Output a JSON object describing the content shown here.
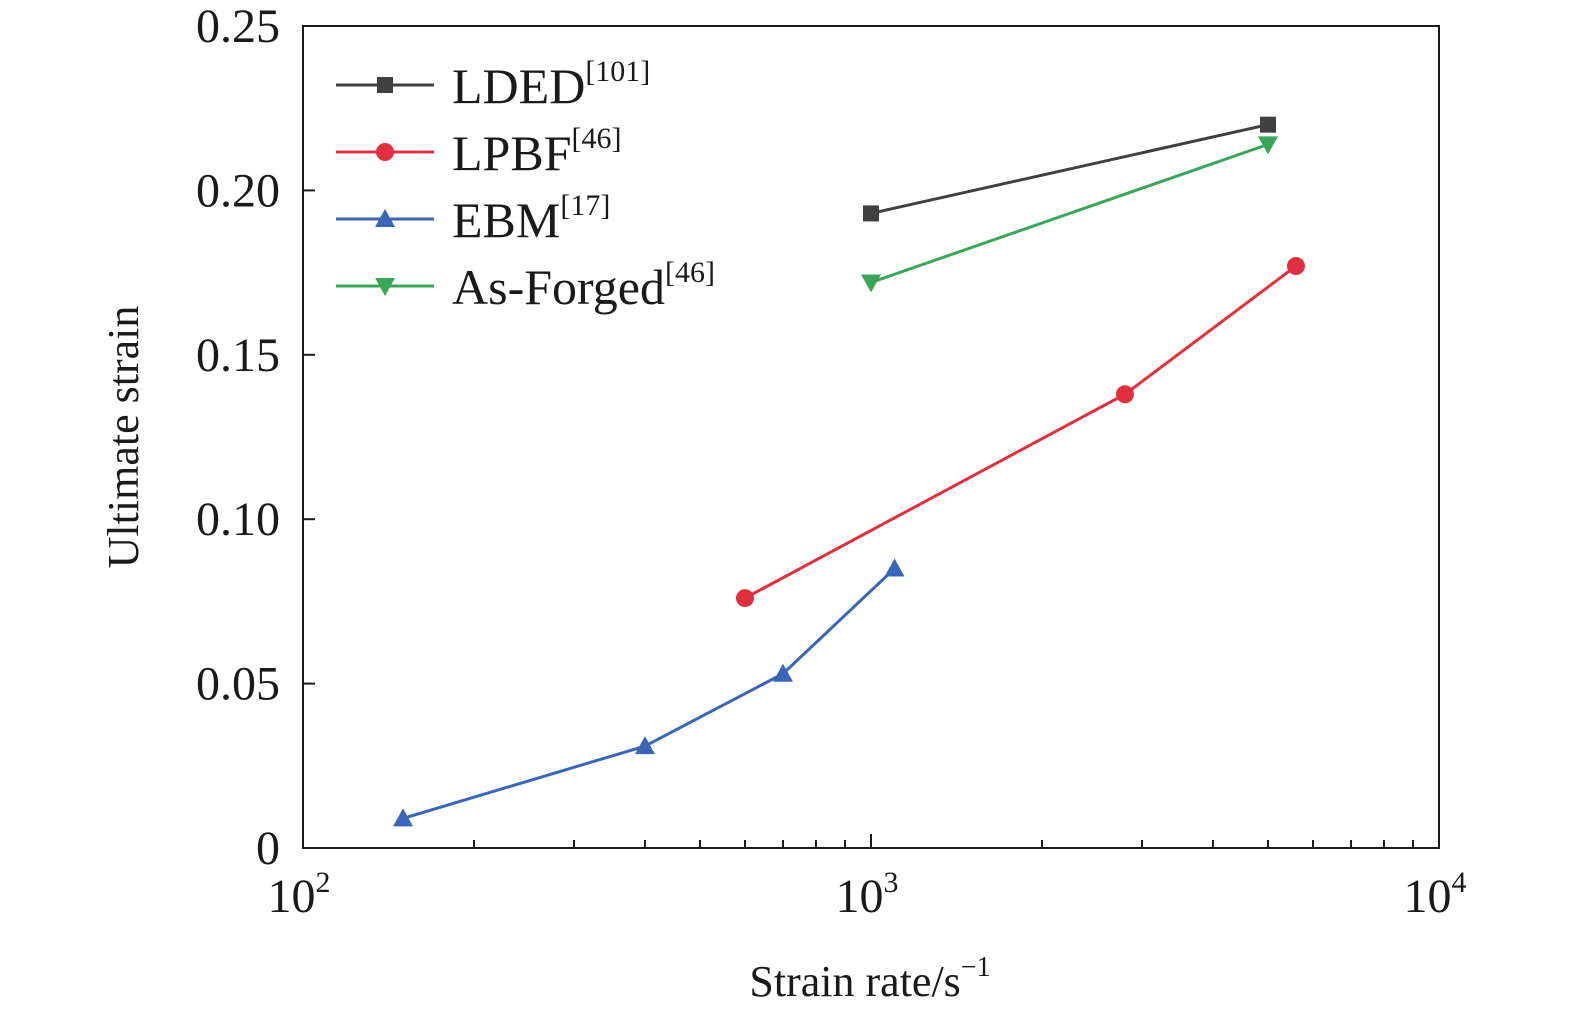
{
  "chart_data": {
    "type": "line",
    "title": "",
    "xlabel": "Strain rate/s",
    "xlabel_sup": "−1",
    "ylabel": "Ultimate strain",
    "x_scale": "log",
    "xlim": [
      100,
      10000
    ],
    "ylim": [
      0,
      0.25
    ],
    "grid": false,
    "legend_position": "top-left",
    "x_ticks": [
      {
        "value": 100,
        "base": "10",
        "exp": "2"
      },
      {
        "value": 1000,
        "base": "10",
        "exp": "3"
      },
      {
        "value": 10000,
        "base": "10",
        "exp": "4"
      }
    ],
    "y_ticks": [
      {
        "value": 0,
        "label": "0"
      },
      {
        "value": 0.05,
        "label": "0.05"
      },
      {
        "value": 0.1,
        "label": "0.10"
      },
      {
        "value": 0.15,
        "label": "0.15"
      },
      {
        "value": 0.2,
        "label": "0.20"
      },
      {
        "value": 0.25,
        "label": "0.25"
      }
    ],
    "series": [
      {
        "name": "LDED",
        "ref": "[101]",
        "color": "#404040",
        "marker": "square",
        "points": [
          {
            "x": 1000,
            "y": 0.193
          },
          {
            "x": 5000,
            "y": 0.22
          }
        ]
      },
      {
        "name": "LPBF",
        "ref": "[46]",
        "color": "#e03040",
        "marker": "circle",
        "points": [
          {
            "x": 600,
            "y": 0.076
          },
          {
            "x": 2800,
            "y": 0.138
          },
          {
            "x": 5600,
            "y": 0.177
          }
        ]
      },
      {
        "name": "EBM",
        "ref": "[17]",
        "color": "#3a66b8",
        "marker": "triangle-up",
        "points": [
          {
            "x": 150,
            "y": 0.009
          },
          {
            "x": 400,
            "y": 0.031
          },
          {
            "x": 700,
            "y": 0.053
          },
          {
            "x": 1100,
            "y": 0.085
          }
        ]
      },
      {
        "name": "As-Forged",
        "ref": "[46]",
        "color": "#3aa65a",
        "marker": "triangle-down",
        "points": [
          {
            "x": 1000,
            "y": 0.172
          },
          {
            "x": 5000,
            "y": 0.214
          }
        ]
      }
    ]
  }
}
